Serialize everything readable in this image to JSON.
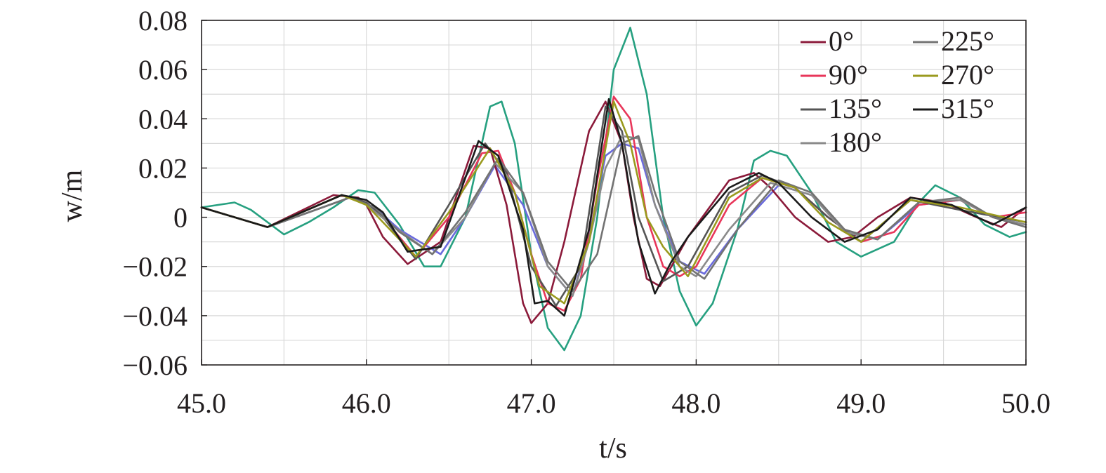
{
  "chart_data": {
    "type": "line",
    "xlabel": "t/s",
    "ylabel": "w/m",
    "xlim": [
      45.0,
      50.0
    ],
    "ylim": [
      -0.06,
      0.08
    ],
    "grid": true,
    "legend_position": "top-right",
    "legend_columns": 2,
    "x_ticks": [
      45.0,
      46.0,
      47.0,
      48.0,
      49.0,
      50.0
    ],
    "x_tick_labels": [
      "45.0",
      "46.0",
      "47.0",
      "48.0",
      "49.0",
      "50.0"
    ],
    "y_ticks": [
      0.08,
      0.06,
      0.04,
      0.02,
      0,
      -0.02,
      -0.04,
      -0.06
    ],
    "y_tick_labels": [
      "0.08",
      "0.06",
      "0.04",
      "0.02",
      "0",
      "−0.02",
      "−0.04",
      "−0.06"
    ],
    "x_minor_step": 0.5,
    "y_minor_step": 0.01,
    "series": [
      {
        "name": "0°",
        "color": "#8b1a3a",
        "x": [
          45.0,
          45.4,
          45.8,
          45.95,
          46.0,
          46.1,
          46.25,
          46.45,
          46.65,
          46.75,
          46.85,
          46.95,
          47.0,
          47.1,
          47.2,
          47.35,
          47.45,
          47.55,
          47.62,
          47.7,
          47.78,
          47.85,
          47.95,
          48.2,
          48.35,
          48.45,
          48.6,
          48.8,
          48.95,
          49.1,
          49.3,
          49.5,
          49.7,
          49.85,
          50.0
        ],
        "y": [
          0.004,
          -0.004,
          0.009,
          0.008,
          0.005,
          -0.008,
          -0.019,
          -0.01,
          0.029,
          0.028,
          0.005,
          -0.035,
          -0.043,
          -0.035,
          -0.01,
          0.035,
          0.047,
          0.03,
          0.0,
          -0.025,
          -0.028,
          -0.02,
          -0.008,
          0.015,
          0.018,
          0.012,
          0.0,
          -0.01,
          -0.008,
          0.0,
          0.008,
          0.006,
          0.0,
          -0.004,
          0.004
        ]
      },
      {
        "name": "90°",
        "color": "#e8365a",
        "x": [
          45.0,
          45.4,
          45.85,
          46.0,
          46.1,
          46.3,
          46.5,
          46.7,
          46.8,
          46.9,
          47.0,
          47.1,
          47.2,
          47.3,
          47.4,
          47.5,
          47.6,
          47.7,
          47.8,
          47.9,
          48.0,
          48.2,
          48.4,
          48.6,
          48.8,
          49.0,
          49.2,
          49.35,
          49.6,
          49.8,
          50.0
        ],
        "y": [
          0.004,
          -0.004,
          0.009,
          0.006,
          0.0,
          -0.016,
          0.0,
          0.026,
          0.027,
          0.01,
          -0.015,
          -0.035,
          -0.038,
          -0.025,
          0.015,
          0.049,
          0.04,
          0.0,
          -0.02,
          -0.024,
          -0.02,
          0.005,
          0.016,
          0.012,
          0.0,
          -0.01,
          -0.006,
          0.005,
          0.007,
          0.0,
          0.002
        ]
      },
      {
        "name": "135°",
        "color": "#555555",
        "x": [
          45.0,
          45.4,
          45.85,
          46.0,
          46.1,
          46.3,
          46.5,
          46.72,
          46.85,
          47.0,
          47.15,
          47.3,
          47.45,
          47.55,
          47.65,
          47.8,
          47.95,
          48.2,
          48.4,
          48.6,
          48.8,
          49.0,
          49.3,
          49.6,
          50.0
        ],
        "y": [
          0.004,
          -0.004,
          0.009,
          0.006,
          0.0,
          -0.017,
          0.005,
          0.03,
          0.018,
          -0.02,
          -0.036,
          -0.02,
          0.045,
          0.035,
          0.0,
          -0.026,
          -0.02,
          0.01,
          0.017,
          0.012,
          0.0,
          -0.01,
          0.007,
          0.003,
          -0.002
        ]
      },
      {
        "name": "180°",
        "color": "#8a8a8a",
        "x": [
          45.0,
          45.4,
          45.9,
          46.0,
          46.15,
          46.4,
          46.6,
          46.78,
          46.95,
          47.1,
          47.25,
          47.35,
          47.45,
          47.55,
          47.65,
          47.75,
          47.9,
          48.0,
          48.2,
          48.45,
          48.7,
          48.9,
          49.1,
          49.35,
          49.6,
          49.8,
          50.0
        ],
        "y": [
          0.004,
          -0.004,
          0.008,
          0.005,
          -0.003,
          -0.015,
          0.0,
          0.022,
          0.01,
          -0.02,
          -0.032,
          -0.01,
          0.02,
          0.033,
          0.032,
          0.005,
          -0.02,
          -0.024,
          -0.005,
          0.014,
          0.009,
          -0.006,
          -0.009,
          0.006,
          0.007,
          0.0,
          -0.003
        ]
      },
      {
        "name": "225°",
        "color": "#737373",
        "x": [
          45.0,
          45.4,
          45.9,
          46.05,
          46.2,
          46.4,
          46.6,
          46.8,
          46.95,
          47.1,
          47.25,
          47.4,
          47.55,
          47.65,
          47.75,
          47.9,
          48.05,
          48.25,
          48.5,
          48.7,
          48.9,
          49.1,
          49.35,
          49.6,
          49.8,
          50.0
        ],
        "y": [
          0.004,
          -0.004,
          0.008,
          0.004,
          -0.006,
          -0.015,
          0.002,
          0.024,
          0.01,
          -0.018,
          -0.03,
          -0.015,
          0.03,
          0.033,
          0.01,
          -0.018,
          -0.025,
          -0.005,
          0.015,
          0.01,
          -0.005,
          -0.009,
          0.006,
          0.008,
          0.0,
          -0.004
        ]
      },
      {
        "name": "270°",
        "color": "#9a9a1e",
        "x": [
          45.0,
          45.4,
          45.85,
          46.0,
          46.1,
          46.3,
          46.5,
          46.75,
          46.9,
          47.05,
          47.2,
          47.35,
          47.5,
          47.6,
          47.7,
          47.8,
          47.95,
          48.2,
          48.4,
          48.6,
          48.8,
          49.0,
          49.3,
          49.6,
          50.0
        ],
        "y": [
          0.004,
          -0.004,
          0.009,
          0.005,
          -0.002,
          -0.016,
          0.002,
          0.028,
          0.01,
          -0.028,
          -0.035,
          -0.01,
          0.047,
          0.03,
          0.0,
          -0.012,
          -0.024,
          0.008,
          0.016,
          0.012,
          -0.002,
          -0.01,
          0.007,
          0.004,
          -0.002
        ]
      },
      {
        "name": "315°",
        "color": "#1a1a1a",
        "x": [
          45.0,
          45.4,
          45.85,
          46.0,
          46.1,
          46.25,
          46.45,
          46.68,
          46.8,
          46.95,
          47.02,
          47.1,
          47.2,
          47.35,
          47.47,
          47.55,
          47.65,
          47.75,
          47.85,
          47.95,
          48.2,
          48.38,
          48.5,
          48.7,
          48.9,
          49.1,
          49.3,
          49.55,
          49.8,
          50.0
        ],
        "y": [
          0.004,
          -0.004,
          0.009,
          0.007,
          0.002,
          -0.014,
          -0.012,
          0.031,
          0.025,
          -0.005,
          -0.035,
          -0.034,
          -0.04,
          -0.005,
          0.048,
          0.03,
          -0.01,
          -0.031,
          -0.018,
          -0.008,
          0.012,
          0.018,
          0.014,
          0.0,
          -0.01,
          -0.005,
          0.008,
          0.005,
          -0.003,
          0.004
        ]
      }
    ],
    "unlabeled_series": [
      {
        "color": "#26a080",
        "x": [
          45.0,
          45.1,
          45.2,
          45.3,
          45.5,
          45.65,
          45.8,
          45.95,
          46.05,
          46.2,
          46.35,
          46.45,
          46.6,
          46.75,
          46.82,
          46.9,
          47.0,
          47.1,
          47.2,
          47.3,
          47.4,
          47.5,
          47.6,
          47.7,
          47.8,
          47.9,
          48.0,
          48.1,
          48.25,
          48.35,
          48.45,
          48.55,
          48.7,
          48.85,
          49.0,
          49.2,
          49.35,
          49.45,
          49.6,
          49.75,
          49.9,
          50.0
        ],
        "y": [
          0.004,
          0.005,
          0.006,
          0.003,
          -0.007,
          -0.002,
          0.004,
          0.011,
          0.01,
          -0.003,
          -0.02,
          -0.02,
          0.0,
          0.045,
          0.047,
          0.03,
          -0.015,
          -0.045,
          -0.054,
          -0.04,
          0.0,
          0.06,
          0.077,
          0.05,
          0.0,
          -0.03,
          -0.044,
          -0.035,
          -0.005,
          0.023,
          0.027,
          0.025,
          0.01,
          -0.01,
          -0.016,
          -0.01,
          0.006,
          0.013,
          0.008,
          -0.003,
          -0.008,
          -0.006
        ]
      },
      {
        "color": "#6a6adc",
        "x": [
          45.0,
          45.4,
          45.9,
          46.05,
          46.2,
          46.45,
          46.6,
          46.78,
          46.95,
          47.1,
          47.25,
          47.35,
          47.45,
          47.55,
          47.65,
          47.75,
          47.9,
          48.05,
          48.25,
          48.5,
          48.7,
          48.9,
          49.1,
          49.35,
          49.6,
          49.8,
          50.0
        ],
        "y": [
          0.004,
          -0.004,
          0.008,
          0.004,
          -0.005,
          -0.015,
          0.0,
          0.021,
          0.005,
          -0.02,
          -0.032,
          -0.008,
          0.025,
          0.03,
          0.028,
          0.005,
          -0.018,
          -0.023,
          -0.005,
          0.013,
          0.009,
          -0.006,
          -0.009,
          0.005,
          0.007,
          0.0,
          -0.003
        ]
      }
    ]
  },
  "legend": {
    "col1": [
      "0°",
      "90°",
      "135°",
      "180°"
    ],
    "col2": [
      "225°",
      "270°",
      "315°"
    ]
  }
}
